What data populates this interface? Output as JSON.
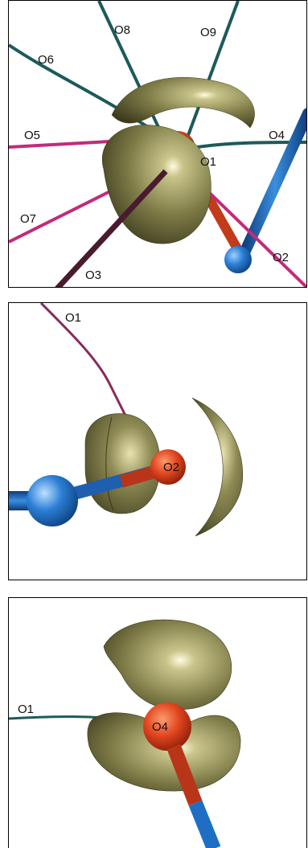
{
  "panels": [
    {
      "labels": {
        "O1": "O1",
        "O2": "O2",
        "O3": "O3",
        "O4": "O4",
        "O5": "O5",
        "O6": "O6",
        "O7": "O7",
        "O8": "O8",
        "O9": "O9"
      }
    },
    {
      "labels": {
        "O1": "O1",
        "O2": "O2"
      }
    },
    {
      "labels": {
        "O1": "O1",
        "O4": "O4"
      }
    }
  ],
  "colors": {
    "oxygen_atom": "#d8401e",
    "metal_atom": "#1e6fc4",
    "lone_pair_surface": "#7a7a45",
    "bond_teal": "#1d5a5a",
    "bond_magenta": "#c42a7a",
    "bond_dark": "#4a1a2e"
  }
}
